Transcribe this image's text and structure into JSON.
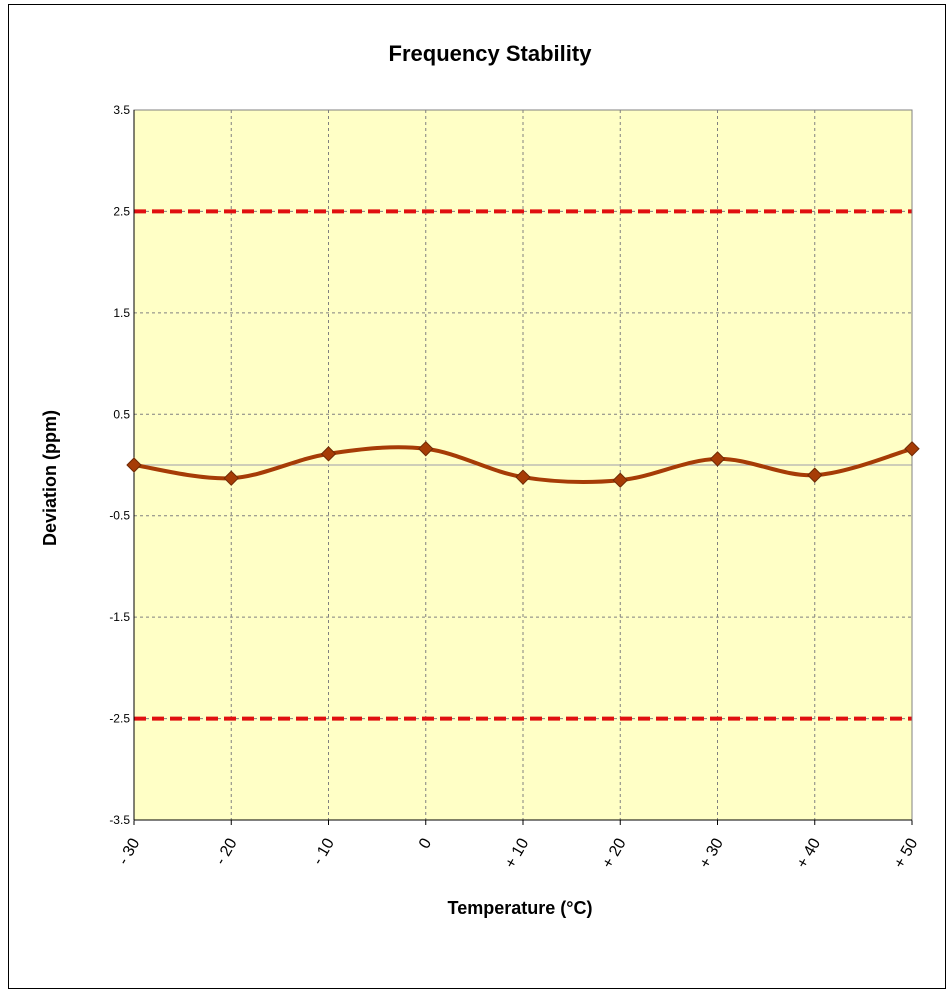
{
  "chart_data": {
    "type": "line",
    "title": "Frequency Stability",
    "xlabel": "Temperature (°C)",
    "ylabel": "Deviation (ppm)",
    "categories": [
      "- 30",
      "- 20",
      "- 10",
      "0",
      "+ 10",
      "+ 20",
      "+ 30",
      "+ 40",
      "+ 50"
    ],
    "ylim": [
      -3.5,
      3.5
    ],
    "yticks": [
      "3.5",
      "2.5",
      "1.5",
      "0.5",
      "-0.5",
      "-1.5",
      "-2.5",
      "-3.5"
    ],
    "series": [
      {
        "values": [
          0.0,
          -0.13,
          0.11,
          0.16,
          -0.12,
          -0.15,
          0.06,
          -0.1,
          0.16
        ],
        "color": "#a63c06",
        "marker": "diamond",
        "smooth": true
      }
    ],
    "limit_lines": [
      {
        "value": 2.5,
        "color": "#e01010",
        "style": "dashed"
      },
      {
        "value": -2.5,
        "color": "#e01010",
        "style": "dashed"
      }
    ],
    "zero_line": {
      "value": 0,
      "color": "#b0b0b0"
    },
    "grid": true,
    "plot_background": "#ffffc6",
    "gridline_color": "#808080"
  }
}
